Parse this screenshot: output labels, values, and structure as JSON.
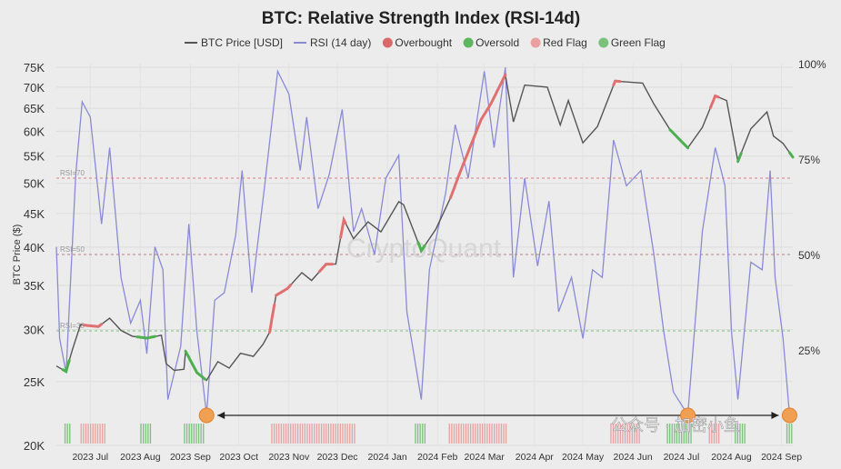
{
  "chart_data": {
    "type": "line",
    "title": "BTC: Relative Strength Index (RSI-14d)",
    "ylabel_left": "BTC Price ($)",
    "legend_position": "top",
    "legend": [
      {
        "label": "BTC Price [USD]",
        "kind": "line",
        "color": "#555555"
      },
      {
        "label": "RSI (14 day)",
        "kind": "line",
        "color": "#8a8ad6"
      },
      {
        "label": "Overbought",
        "kind": "dot",
        "color": "#d96a6a"
      },
      {
        "label": "Oversold",
        "kind": "dot",
        "color": "#5cb85c"
      },
      {
        "label": "Red Flag",
        "kind": "dot",
        "color": "#e8a0a0"
      },
      {
        "label": "Green Flag",
        "kind": "dot",
        "color": "#7ac17a"
      }
    ],
    "y_left_ticks": [
      "75K",
      "70K",
      "65K",
      "60K",
      "55K",
      "50K",
      "45K",
      "40K",
      "35K",
      "30K",
      "25K",
      "20K"
    ],
    "y_left_values": [
      75000,
      70000,
      65000,
      60000,
      55000,
      50000,
      45000,
      40000,
      35000,
      30000,
      25000,
      20000
    ],
    "y_left_scale": "log",
    "y_left_range": [
      20000,
      76000
    ],
    "y_right_ticks": [
      "100%",
      "75%",
      "50%",
      "25%"
    ],
    "y_right_values": [
      100,
      75,
      50,
      25
    ],
    "y_right_range": [
      0,
      100
    ],
    "x_ticks": [
      "2023 Jul",
      "2023 Aug",
      "2023 Sep",
      "2023 Oct",
      "2023 Nov",
      "2023 Dec",
      "2024 Jan",
      "2024 Feb",
      "2024 Mar",
      "2024 Apr",
      "2024 May",
      "2024 Jun",
      "2024 Jul",
      "2024 Aug",
      "2024 Sep"
    ],
    "x_range": [
      "2023-06-10",
      "2024-09-08"
    ],
    "reference_lines": [
      {
        "label": "RSI=70",
        "value": 70,
        "color": "#d98080"
      },
      {
        "label": "RSI=50",
        "value": 50,
        "color": "#b98080"
      },
      {
        "label": "RSI=30",
        "value": 30,
        "color": "#7ac17a"
      }
    ],
    "grid": true,
    "watermark": "CryptoQuant",
    "price_series": {
      "name": "BTC Price [USD]",
      "color": "#555555",
      "points": [
        [
          "2023-06-10",
          26400
        ],
        [
          "2023-06-16",
          25900
        ],
        [
          "2023-06-20",
          28000
        ],
        [
          "2023-06-25",
          30500
        ],
        [
          "2023-06-30",
          30400
        ],
        [
          "2023-07-06",
          30300
        ],
        [
          "2023-07-13",
          31200
        ],
        [
          "2023-07-20",
          29900
        ],
        [
          "2023-07-27",
          29300
        ],
        [
          "2023-08-05",
          29100
        ],
        [
          "2023-08-14",
          29400
        ],
        [
          "2023-08-17",
          26600
        ],
        [
          "2023-08-22",
          26000
        ],
        [
          "2023-08-28",
          26100
        ],
        [
          "2023-08-29",
          27800
        ],
        [
          "2023-09-05",
          25800
        ],
        [
          "2023-09-11",
          25100
        ],
        [
          "2023-09-18",
          26800
        ],
        [
          "2023-09-25",
          26200
        ],
        [
          "2023-10-02",
          27600
        ],
        [
          "2023-10-10",
          27300
        ],
        [
          "2023-10-16",
          28500
        ],
        [
          "2023-10-20",
          29700
        ],
        [
          "2023-10-24",
          33800
        ],
        [
          "2023-10-31",
          34600
        ],
        [
          "2023-11-09",
          36600
        ],
        [
          "2023-11-15",
          35600
        ],
        [
          "2023-11-24",
          37700
        ],
        [
          "2023-11-30",
          37700
        ],
        [
          "2023-12-05",
          44000
        ],
        [
          "2023-12-11",
          41200
        ],
        [
          "2023-12-20",
          43700
        ],
        [
          "2023-12-28",
          42200
        ],
        [
          "2024-01-08",
          46900
        ],
        [
          "2024-01-11",
          46400
        ],
        [
          "2024-01-22",
          39500
        ],
        [
          "2024-01-31",
          42600
        ],
        [
          "2024-02-09",
          47500
        ],
        [
          "2024-02-15",
          52000
        ],
        [
          "2024-02-28",
          62500
        ],
        [
          "2024-03-05",
          66000
        ],
        [
          "2024-03-14",
          73100
        ],
        [
          "2024-03-19",
          62000
        ],
        [
          "2024-03-26",
          70500
        ],
        [
          "2024-04-09",
          70000
        ],
        [
          "2024-04-17",
          61300
        ],
        [
          "2024-04-22",
          66800
        ],
        [
          "2024-05-01",
          57600
        ],
        [
          "2024-05-10",
          61000
        ],
        [
          "2024-05-21",
          71500
        ],
        [
          "2024-06-07",
          71000
        ],
        [
          "2024-06-14",
          66000
        ],
        [
          "2024-06-24",
          60300
        ],
        [
          "2024-07-05",
          56600
        ],
        [
          "2024-07-14",
          60800
        ],
        [
          "2024-07-22",
          67900
        ],
        [
          "2024-07-29",
          66800
        ],
        [
          "2024-08-05",
          54000
        ],
        [
          "2024-08-13",
          60500
        ],
        [
          "2024-08-23",
          64200
        ],
        [
          "2024-08-27",
          59000
        ],
        [
          "2024-09-02",
          57500
        ],
        [
          "2024-09-08",
          54800
        ]
      ]
    },
    "rsi_series": {
      "name": "RSI (14 day)",
      "color": "#8a8ad6",
      "points": [
        [
          "2023-06-10",
          52
        ],
        [
          "2023-06-12",
          28
        ],
        [
          "2023-06-16",
          19
        ],
        [
          "2023-06-22",
          71
        ],
        [
          "2023-06-26",
          90
        ],
        [
          "2023-07-01",
          86
        ],
        [
          "2023-07-08",
          58
        ],
        [
          "2023-07-13",
          78
        ],
        [
          "2023-07-20",
          44
        ],
        [
          "2023-07-26",
          32
        ],
        [
          "2023-08-01",
          38
        ],
        [
          "2023-08-05",
          24
        ],
        [
          "2023-08-10",
          52
        ],
        [
          "2023-08-15",
          46
        ],
        [
          "2023-08-18",
          12
        ],
        [
          "2023-08-26",
          26
        ],
        [
          "2023-08-31",
          58
        ],
        [
          "2023-09-05",
          30
        ],
        [
          "2023-09-11",
          8
        ],
        [
          "2023-09-16",
          38
        ],
        [
          "2023-09-22",
          40
        ],
        [
          "2023-09-29",
          55
        ],
        [
          "2023-10-03",
          72
        ],
        [
          "2023-10-09",
          40
        ],
        [
          "2023-10-17",
          68
        ],
        [
          "2023-10-25",
          98
        ],
        [
          "2023-11-01",
          92
        ],
        [
          "2023-11-08",
          72
        ],
        [
          "2023-11-12",
          86
        ],
        [
          "2023-11-19",
          62
        ],
        [
          "2023-11-26",
          71
        ],
        [
          "2023-12-04",
          88
        ],
        [
          "2023-12-11",
          56
        ],
        [
          "2023-12-16",
          62
        ],
        [
          "2023-12-24",
          50
        ],
        [
          "2023-12-31",
          70
        ],
        [
          "2024-01-08",
          76
        ],
        [
          "2024-01-13",
          35
        ],
        [
          "2024-01-22",
          12
        ],
        [
          "2024-01-27",
          46
        ],
        [
          "2024-02-06",
          66
        ],
        [
          "2024-02-12",
          84
        ],
        [
          "2024-02-20",
          70
        ],
        [
          "2024-03-01",
          98
        ],
        [
          "2024-03-07",
          78
        ],
        [
          "2024-03-14",
          99
        ],
        [
          "2024-03-19",
          44
        ],
        [
          "2024-03-26",
          70
        ],
        [
          "2024-04-03",
          47
        ],
        [
          "2024-04-10",
          64
        ],
        [
          "2024-04-16",
          35
        ],
        [
          "2024-04-24",
          44
        ],
        [
          "2024-05-01",
          28
        ],
        [
          "2024-05-07",
          46
        ],
        [
          "2024-05-13",
          44
        ],
        [
          "2024-05-20",
          80
        ],
        [
          "2024-05-28",
          68
        ],
        [
          "2024-06-06",
          72
        ],
        [
          "2024-06-14",
          50
        ],
        [
          "2024-06-20",
          30
        ],
        [
          "2024-06-26",
          14
        ],
        [
          "2024-07-05",
          8
        ],
        [
          "2024-07-14",
          56
        ],
        [
          "2024-07-22",
          78
        ],
        [
          "2024-07-28",
          68
        ],
        [
          "2024-08-01",
          30
        ],
        [
          "2024-08-05",
          12
        ],
        [
          "2024-08-13",
          48
        ],
        [
          "2024-08-20",
          46
        ],
        [
          "2024-08-25",
          72
        ],
        [
          "2024-08-28",
          44
        ],
        [
          "2024-09-02",
          28
        ],
        [
          "2024-09-06",
          8
        ]
      ]
    },
    "highlight_segments": [
      {
        "type": "Oversold",
        "color": "#4caf50",
        "start": "2023-06-14",
        "end": "2023-06-18"
      },
      {
        "type": "Red Flag",
        "color": "#e07070",
        "start": "2023-06-27",
        "end": "2023-07-08"
      },
      {
        "type": "Oversold",
        "color": "#4caf50",
        "start": "2023-07-30",
        "end": "2023-08-10"
      },
      {
        "type": "Oversold",
        "color": "#4caf50",
        "start": "2023-08-29",
        "end": "2023-09-10"
      },
      {
        "type": "Red Flag",
        "color": "#e07070",
        "start": "2023-10-20",
        "end": "2023-10-23"
      },
      {
        "type": "Overbought",
        "color": "#e07070",
        "start": "2023-10-24",
        "end": "2023-11-02"
      },
      {
        "type": "Overbought",
        "color": "#e07070",
        "start": "2023-11-20",
        "end": "2023-11-28"
      },
      {
        "type": "Overbought",
        "color": "#e07070",
        "start": "2023-12-03",
        "end": "2023-12-06"
      },
      {
        "type": "Oversold",
        "color": "#4caf50",
        "start": "2024-01-20",
        "end": "2024-01-24"
      },
      {
        "type": "Overbought",
        "color": "#e07070",
        "start": "2024-02-09",
        "end": "2024-03-14"
      },
      {
        "type": "Overbought",
        "color": "#e07070",
        "start": "2024-05-20",
        "end": "2024-05-24"
      },
      {
        "type": "Oversold",
        "color": "#4caf50",
        "start": "2024-06-24",
        "end": "2024-07-05"
      },
      {
        "type": "Overbought",
        "color": "#e07070",
        "start": "2024-07-19",
        "end": "2024-07-24"
      },
      {
        "type": "Oversold",
        "color": "#4caf50",
        "start": "2024-08-05",
        "end": "2024-08-07"
      },
      {
        "type": "Oversold",
        "color": "#4caf50",
        "start": "2024-09-06",
        "end": "2024-09-08"
      }
    ],
    "bottom_flag_bars": [
      {
        "color": "#7ac17a",
        "start": "2023-06-15",
        "end": "2023-06-19"
      },
      {
        "color": "#e8a0a0",
        "start": "2023-06-25",
        "end": "2023-07-10"
      },
      {
        "color": "#7ac17a",
        "start": "2023-08-01",
        "end": "2023-08-08"
      },
      {
        "color": "#7ac17a",
        "start": "2023-08-28",
        "end": "2023-09-10"
      },
      {
        "color": "#e8a0a0",
        "start": "2023-10-21",
        "end": "2023-11-30"
      },
      {
        "color": "#e8a0a0",
        "start": "2023-12-01",
        "end": "2023-12-12"
      },
      {
        "color": "#7ac17a",
        "start": "2024-01-18",
        "end": "2024-01-25"
      },
      {
        "color": "#e8a0a0",
        "start": "2024-02-08",
        "end": "2024-03-15"
      },
      {
        "color": "#e8a0a0",
        "start": "2024-05-18",
        "end": "2024-06-06"
      },
      {
        "color": "#7ac17a",
        "start": "2024-06-22",
        "end": "2024-07-08"
      },
      {
        "color": "#e8a0a0",
        "start": "2024-07-18",
        "end": "2024-07-25"
      },
      {
        "color": "#7ac17a",
        "start": "2024-08-03",
        "end": "2024-08-09"
      },
      {
        "color": "#7ac17a",
        "start": "2024-09-04",
        "end": "2024-09-08"
      }
    ],
    "annotations": {
      "circle_color": "#f0a050",
      "circles": [
        "2023-09-11",
        "2024-07-05",
        "2024-09-06"
      ],
      "arrow": {
        "from": "2023-09-11",
        "to": "2024-09-06"
      }
    },
    "image_overlay_text": "公众号 · 加密小鱼"
  }
}
